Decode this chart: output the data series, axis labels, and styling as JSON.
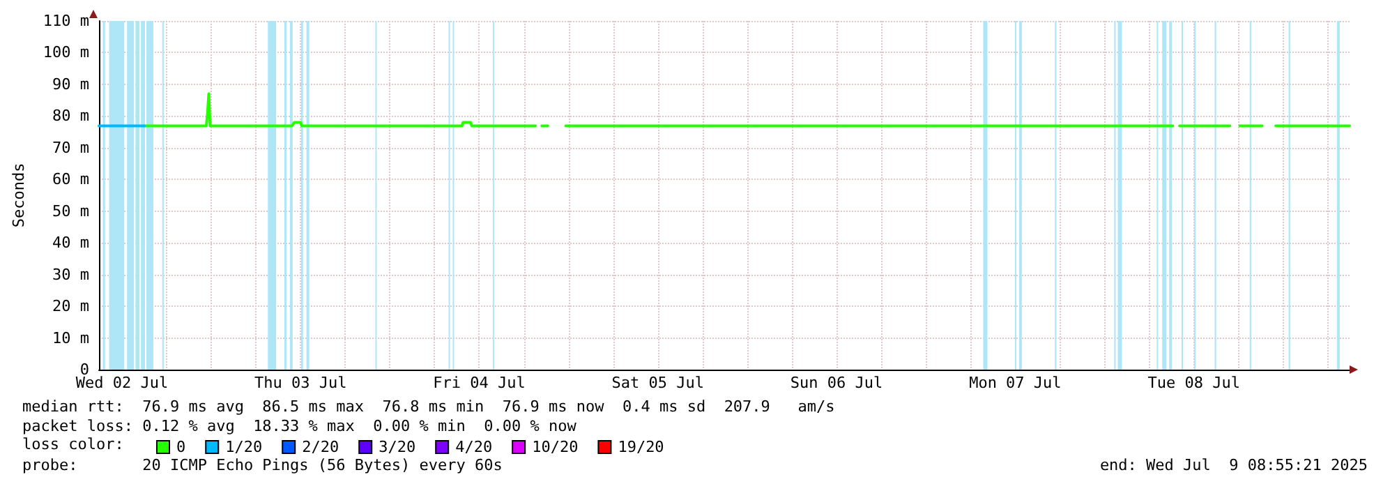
{
  "chart_data": {
    "type": "line",
    "ylabel": "Seconds",
    "legend_title": "loss color:",
    "legend": "bottom",
    "grid": true,
    "marker": "none",
    "line_style": "solid",
    "xlim": [
      "2025-07-02T08:55",
      "2025-07-09T08:55"
    ],
    "xticks": [
      {
        "value": "2025-07-02T12:00",
        "label": "Wed 02 Jul"
      },
      {
        "value": "2025-07-02T18:00",
        "label": null
      },
      {
        "value": "2025-07-03T00:00",
        "label": null
      },
      {
        "value": "2025-07-03T06:00",
        "label": null
      },
      {
        "value": "2025-07-03T12:00",
        "label": "Thu 03 Jul"
      },
      {
        "value": "2025-07-03T18:00",
        "label": null
      },
      {
        "value": "2025-07-04T00:00",
        "label": null
      },
      {
        "value": "2025-07-04T06:00",
        "label": null
      },
      {
        "value": "2025-07-04T12:00",
        "label": "Fri 04 Jul"
      },
      {
        "value": "2025-07-04T18:00",
        "label": null
      },
      {
        "value": "2025-07-05T00:00",
        "label": null
      },
      {
        "value": "2025-07-05T06:00",
        "label": null
      },
      {
        "value": "2025-07-05T12:00",
        "label": "Sat 05 Jul"
      },
      {
        "value": "2025-07-05T18:00",
        "label": null
      },
      {
        "value": "2025-07-06T00:00",
        "label": null
      },
      {
        "value": "2025-07-06T06:00",
        "label": null
      },
      {
        "value": "2025-07-06T12:00",
        "label": "Sun 06 Jul"
      },
      {
        "value": "2025-07-06T18:00",
        "label": null
      },
      {
        "value": "2025-07-07T00:00",
        "label": null
      },
      {
        "value": "2025-07-07T06:00",
        "label": null
      },
      {
        "value": "2025-07-07T12:00",
        "label": "Mon 07 Jul"
      },
      {
        "value": "2025-07-07T18:00",
        "label": null
      },
      {
        "value": "2025-07-08T00:00",
        "label": null
      },
      {
        "value": "2025-07-08T06:00",
        "label": null
      },
      {
        "value": "2025-07-08T12:00",
        "label": "Tue 08 Jul"
      },
      {
        "value": "2025-07-08T18:00",
        "label": null
      },
      {
        "value": "2025-07-09T00:00",
        "label": null
      },
      {
        "value": "2025-07-09T06:00",
        "label": null
      }
    ],
    "ylim": [
      0,
      110
    ],
    "yticks": [
      0,
      {
        "value": 10,
        "label": "10 m"
      },
      {
        "value": 20,
        "label": "20 m"
      },
      {
        "value": 30,
        "label": "30 m"
      },
      {
        "value": 40,
        "label": "40 m"
      },
      {
        "value": 50,
        "label": "50 m"
      },
      {
        "value": 60,
        "label": "60 m"
      },
      {
        "value": 70,
        "label": "70 m"
      },
      {
        "value": 80,
        "label": "80 m"
      },
      {
        "value": 90,
        "label": "90 m"
      },
      {
        "value": 100,
        "label": "100 m"
      },
      {
        "value": 110,
        "label": "110 m"
      }
    ],
    "series": [
      {
        "name": "0",
        "color": "#26ff00",
        "x": [
          "2025-07-02T15:00",
          "2025-07-02T23:20",
          "2025-07-02T23:30",
          "2025-07-02T23:40",
          "2025-07-02T23:50",
          "2025-07-03T10:50",
          "2025-07-03T11:10",
          "2025-07-03T12:00",
          "2025-07-03T12:10",
          "2025-07-04T09:40",
          "2025-07-04T09:50",
          "2025-07-04T10:50",
          "2025-07-04T11:00",
          "2025-07-04T19:33",
          "2025-07-04T20:00",
          "2025-07-04T20:24",
          "2025-07-04T21:12",
          "2025-07-04T22:00",
          "2025-07-04T23:37",
          "2025-07-08T09:10",
          "2025-07-08T09:40",
          "2025-07-08T10:05",
          "2025-07-08T16:50",
          "2025-07-08T17:30",
          "2025-07-08T18:10",
          "2025-07-08T21:10",
          "2025-07-08T22:00",
          "2025-07-08T23:00",
          "2025-07-09T08:55"
        ],
        "values": [
          76.9,
          76.9,
          81,
          87,
          76.9,
          76.9,
          78,
          78,
          76.9,
          76.9,
          78,
          78,
          76.9,
          76.9,
          null,
          76.9,
          76.9,
          null,
          76.9,
          76.9,
          null,
          76.9,
          76.9,
          null,
          76.9,
          76.9,
          null,
          76.9,
          76.9
        ]
      },
      {
        "name": "1/20",
        "color": "#00b8ff",
        "x": [
          "2025-07-02T08:55",
          "2025-07-02T15:00"
        ],
        "values": [
          76.9,
          76.9
        ]
      },
      {
        "name": "2/20",
        "color": "#0059ff"
      },
      {
        "name": "3/20",
        "color": "#5e00ff"
      },
      {
        "name": "4/20",
        "color": "#7e00ff"
      },
      {
        "name": "10/20",
        "color": "#dd00ff"
      },
      {
        "name": "19/20",
        "color": "#ff0000"
      }
    ],
    "bands": [
      {
        "axis": "x",
        "from": "2025-07-02T09:27",
        "to": "2025-07-02T09:44",
        "color": "#aee6f8"
      },
      {
        "axis": "x",
        "from": "2025-07-02T10:17",
        "to": "2025-07-02T12:19",
        "color": "#aee6f8"
      },
      {
        "axis": "x",
        "from": "2025-07-02T12:41",
        "to": "2025-07-02T13:37",
        "color": "#aee6f8"
      },
      {
        "axis": "x",
        "from": "2025-07-02T13:49",
        "to": "2025-07-02T14:22",
        "color": "#aee6f8"
      },
      {
        "axis": "x",
        "from": "2025-07-02T14:33",
        "to": "2025-07-02T15:06",
        "color": "#aee6f8"
      },
      {
        "axis": "x",
        "from": "2025-07-02T15:17",
        "to": "2025-07-02T16:13",
        "color": "#aee6f8"
      },
      {
        "axis": "x",
        "from": "2025-07-02T17:25",
        "to": "2025-07-02T17:37",
        "color": "#aee6f8"
      },
      {
        "axis": "x",
        "from": "2025-07-03T07:36",
        "to": "2025-07-03T08:43",
        "color": "#aee6f8"
      },
      {
        "axis": "x",
        "from": "2025-07-03T09:49",
        "to": "2025-07-03T10:06",
        "color": "#aee6f8"
      },
      {
        "axis": "x",
        "from": "2025-07-03T10:34",
        "to": "2025-07-03T10:56",
        "color": "#aee6f8"
      },
      {
        "axis": "x",
        "from": "2025-07-03T12:03",
        "to": "2025-07-03T12:19",
        "color": "#aee6f8"
      },
      {
        "axis": "x",
        "from": "2025-07-03T12:47",
        "to": "2025-07-03T13:10",
        "color": "#aee6f8"
      },
      {
        "axis": "x",
        "from": "2025-07-03T22:03",
        "to": "2025-07-03T22:14",
        "color": "#aee6f8"
      },
      {
        "axis": "x",
        "from": "2025-07-04T07:53",
        "to": "2025-07-04T08:04",
        "color": "#aee6f8"
      },
      {
        "axis": "x",
        "from": "2025-07-04T08:26",
        "to": "2025-07-04T08:37",
        "color": "#aee6f8"
      },
      {
        "axis": "x",
        "from": "2025-07-04T13:49",
        "to": "2025-07-04T14:00",
        "color": "#aee6f8"
      },
      {
        "axis": "x",
        "from": "2025-07-07T07:42",
        "to": "2025-07-07T08:16",
        "color": "#aee6f8"
      },
      {
        "axis": "x",
        "from": "2025-07-07T11:58",
        "to": "2025-07-07T12:09",
        "color": "#aee6f8"
      },
      {
        "axis": "x",
        "from": "2025-07-07T12:31",
        "to": "2025-07-07T12:53",
        "color": "#aee6f8"
      },
      {
        "axis": "x",
        "from": "2025-07-07T17:20",
        "to": "2025-07-07T17:32",
        "color": "#aee6f8"
      },
      {
        "axis": "x",
        "from": "2025-07-08T01:18",
        "to": "2025-07-08T01:30",
        "color": "#aee6f8"
      },
      {
        "axis": "x",
        "from": "2025-07-08T01:47",
        "to": "2025-07-08T02:20",
        "color": "#aee6f8"
      },
      {
        "axis": "x",
        "from": "2025-07-08T07:01",
        "to": "2025-07-08T07:12",
        "color": "#aee6f8"
      },
      {
        "axis": "x",
        "from": "2025-07-08T07:45",
        "to": "2025-07-08T08:19",
        "color": "#aee6f8"
      },
      {
        "axis": "x",
        "from": "2025-07-08T08:41",
        "to": "2025-07-08T09:03",
        "color": "#aee6f8"
      },
      {
        "axis": "x",
        "from": "2025-07-08T10:21",
        "to": "2025-07-08T10:32",
        "color": "#aee6f8"
      },
      {
        "axis": "x",
        "from": "2025-07-08T12:01",
        "to": "2025-07-08T12:13",
        "color": "#aee6f8"
      },
      {
        "axis": "x",
        "from": "2025-07-08T14:48",
        "to": "2025-07-08T15:00",
        "color": "#aee6f8"
      },
      {
        "axis": "x",
        "from": "2025-07-08T19:30",
        "to": "2025-07-08T19:42",
        "color": "#aee6f8"
      },
      {
        "axis": "x",
        "from": "2025-07-09T00:44",
        "to": "2025-07-09T00:56",
        "color": "#aee6f8"
      },
      {
        "axis": "x",
        "from": "2025-07-09T07:13",
        "to": "2025-07-09T07:36",
        "color": "#aee6f8"
      }
    ],
    "annotations": [
      "median rtt:  76.9 ms avg  86.5 ms max  76.8 ms min  76.9 ms now  0.4 ms sd  207.9   am/s",
      "packet loss: 0.12 % avg  18.33 % max  0.00 % min  0.00 % now",
      "probe:       20 ICMP Echo Pings (56 Bytes) every 60s",
      "end: Wed Jul  9 08:55:21 2025"
    ]
  }
}
